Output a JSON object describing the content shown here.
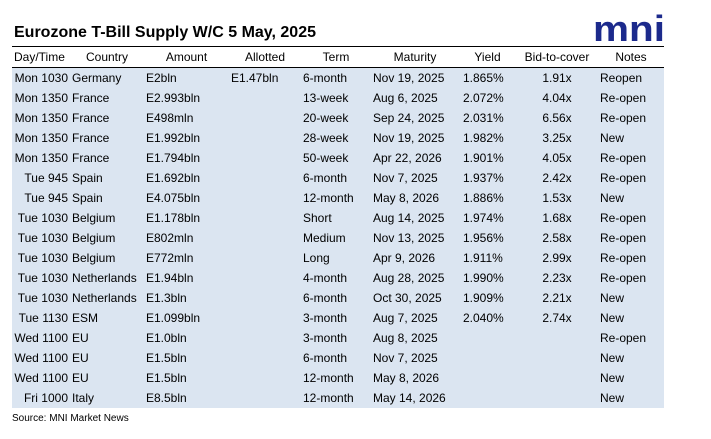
{
  "title": "Eurozone T-Bill Supply W/C 5 May, 2025",
  "logo": {
    "text": "mni",
    "color": "#1c2a8c"
  },
  "colors": {
    "row_background": "#dbe5f1"
  },
  "columns": [
    "Day/Time",
    "Country",
    "Amount",
    "Allotted",
    "Term",
    "Maturity",
    "Yield",
    "Bid-to-cover",
    "Notes"
  ],
  "rows": [
    {
      "day": "Mon 1030",
      "country": "Germany",
      "amount": "E2bln",
      "allotted": "E1.47bln",
      "term": "6-month",
      "maturity": "Nov 19, 2025",
      "yield": "1.865%",
      "btc": "1.91x",
      "notes": "Reopen"
    },
    {
      "day": "Mon 1350",
      "country": "France",
      "amount": "E2.993bln",
      "allotted": "",
      "term": "13-week",
      "maturity": "Aug 6, 2025",
      "yield": "2.072%",
      "btc": "4.04x",
      "notes": "Re-open"
    },
    {
      "day": "Mon 1350",
      "country": "France",
      "amount": "E498mln",
      "allotted": "",
      "term": "20-week",
      "maturity": "Sep 24, 2025",
      "yield": "2.031%",
      "btc": "6.56x",
      "notes": "Re-open"
    },
    {
      "day": "Mon 1350",
      "country": "France",
      "amount": "E1.992bln",
      "allotted": "",
      "term": "28-week",
      "maturity": "Nov 19, 2025",
      "yield": "1.982%",
      "btc": "3.25x",
      "notes": "New"
    },
    {
      "day": "Mon 1350",
      "country": "France",
      "amount": "E1.794bln",
      "allotted": "",
      "term": "50-week",
      "maturity": "Apr 22, 2026",
      "yield": "1.901%",
      "btc": "4.05x",
      "notes": "Re-open"
    },
    {
      "day": "Tue 945",
      "country": "Spain",
      "amount": "E1.692bln",
      "allotted": "",
      "term": "6-month",
      "maturity": "Nov 7, 2025",
      "yield": "1.937%",
      "btc": "2.42x",
      "notes": "Re-open"
    },
    {
      "day": "Tue 945",
      "country": "Spain",
      "amount": "E4.075bln",
      "allotted": "",
      "term": "12-month",
      "maturity": "May 8, 2026",
      "yield": "1.886%",
      "btc": "1.53x",
      "notes": "New"
    },
    {
      "day": "Tue 1030",
      "country": "Belgium",
      "amount": "E1.178bln",
      "allotted": "",
      "term": "Short",
      "maturity": "Aug 14, 2025",
      "yield": "1.974%",
      "btc": "1.68x",
      "notes": "Re-open"
    },
    {
      "day": "Tue 1030",
      "country": "Belgium",
      "amount": "E802mln",
      "allotted": "",
      "term": "Medium",
      "maturity": "Nov 13, 2025",
      "yield": "1.956%",
      "btc": "2.58x",
      "notes": "Re-open"
    },
    {
      "day": "Tue 1030",
      "country": "Belgium",
      "amount": "E772mln",
      "allotted": "",
      "term": "Long",
      "maturity": "Apr 9, 2026",
      "yield": "1.911%",
      "btc": "2.99x",
      "notes": "Re-open"
    },
    {
      "day": "Tue 1030",
      "country": "Netherlands",
      "amount": "E1.94bln",
      "allotted": "",
      "term": "4-month",
      "maturity": "Aug 28, 2025",
      "yield": "1.990%",
      "btc": "2.23x",
      "notes": "Re-open"
    },
    {
      "day": "Tue 1030",
      "country": "Netherlands",
      "amount": "E1.3bln",
      "allotted": "",
      "term": "6-month",
      "maturity": "Oct 30, 2025",
      "yield": "1.909%",
      "btc": "2.21x",
      "notes": "New"
    },
    {
      "day": "Tue 1130",
      "country": "ESM",
      "amount": "E1.099bln",
      "allotted": "",
      "term": "3-month",
      "maturity": "Aug 7, 2025",
      "yield": "2.040%",
      "btc": "2.74x",
      "notes": "New"
    },
    {
      "day": "Wed 1100",
      "country": "EU",
      "amount": "E1.0bln",
      "allotted": "",
      "term": "3-month",
      "maturity": "Aug 8, 2025",
      "yield": "",
      "btc": "",
      "notes": "Re-open"
    },
    {
      "day": "Wed 1100",
      "country": "EU",
      "amount": "E1.5bln",
      "allotted": "",
      "term": "6-month",
      "maturity": "Nov 7, 2025",
      "yield": "",
      "btc": "",
      "notes": "New"
    },
    {
      "day": "Wed 1100",
      "country": "EU",
      "amount": "E1.5bln",
      "allotted": "",
      "term": "12-month",
      "maturity": "May 8, 2026",
      "yield": "",
      "btc": "",
      "notes": "New"
    },
    {
      "day": "Fri 1000",
      "country": "Italy",
      "amount": "E8.5bln",
      "allotted": "",
      "term": "12-month",
      "maturity": "May 14, 2026",
      "yield": "",
      "btc": "",
      "notes": "New"
    }
  ],
  "source": "Source: MNI Market News"
}
